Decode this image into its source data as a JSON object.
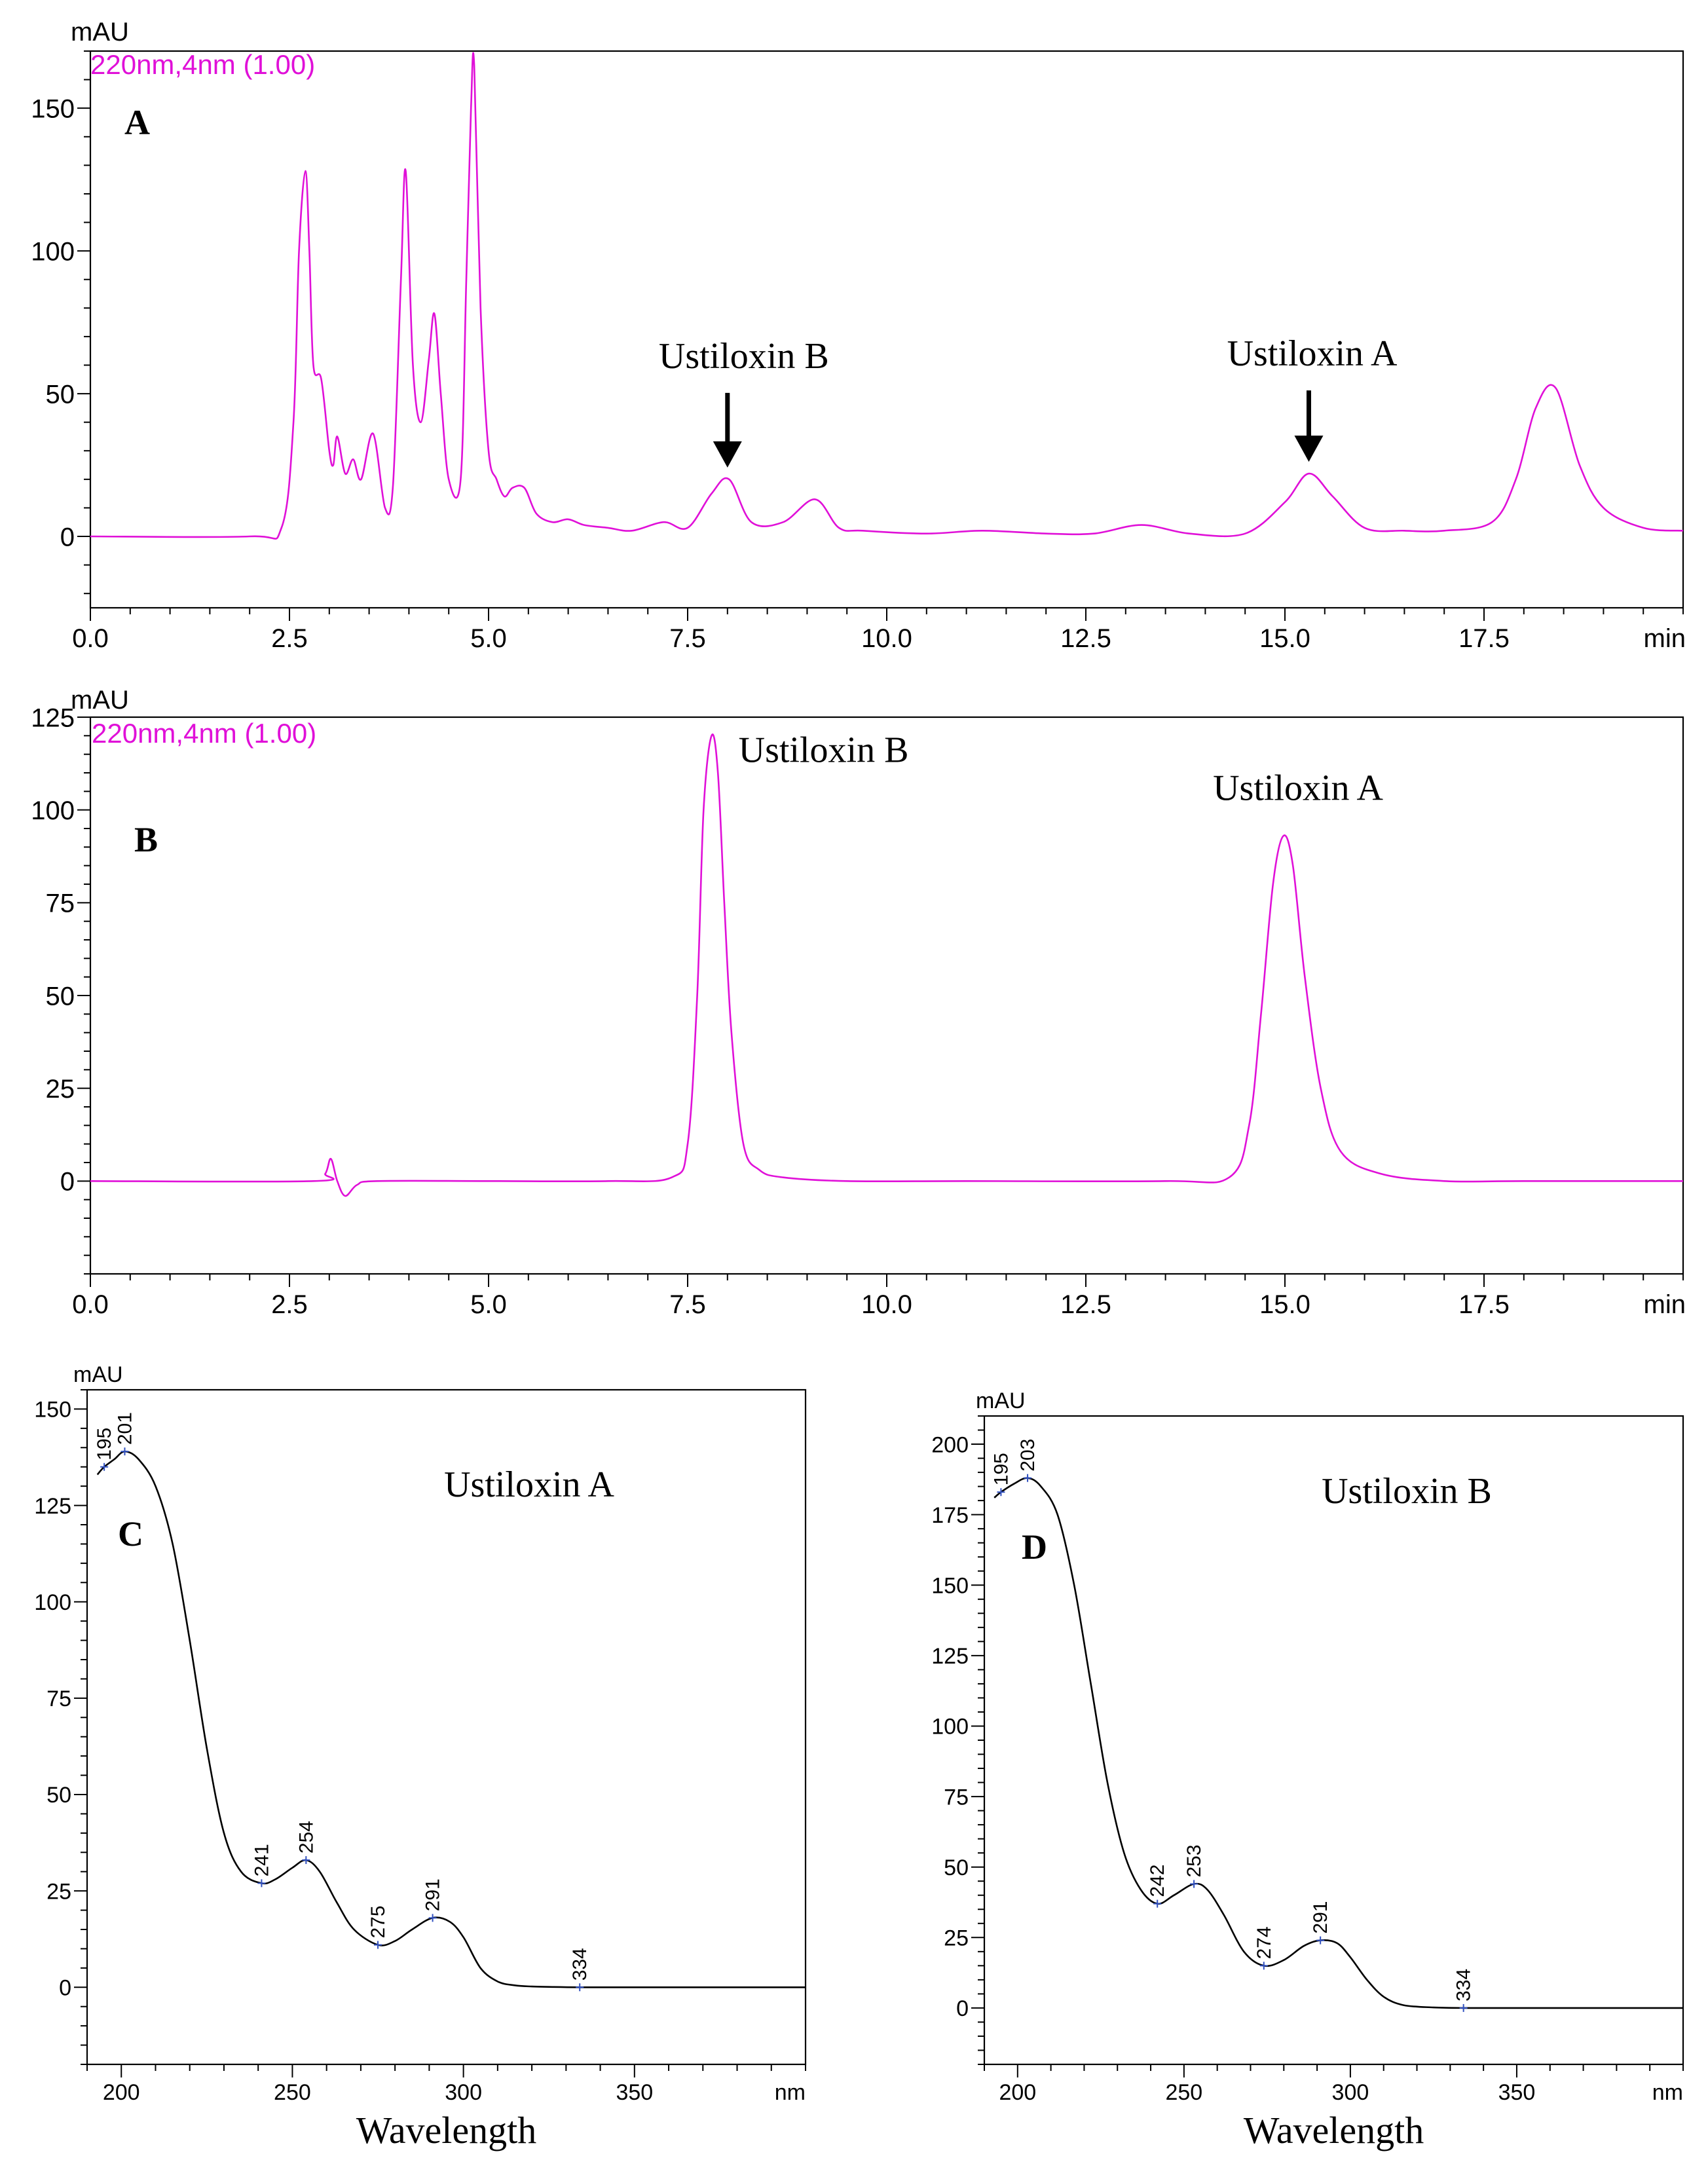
{
  "chart_data": [
    {
      "panel": "A",
      "type": "line",
      "ylabel": "mAU",
      "xlabel": "min",
      "channel": "220nm,4nm (1.00)",
      "xlim": [
        0,
        20
      ],
      "ylim": [
        -25,
        170
      ],
      "xticks": [
        0,
        2.5,
        5,
        7.5,
        10,
        12.5,
        15,
        17.5
      ],
      "xtick_labels": [
        "0.0",
        "2.5",
        "5.0",
        "7.5",
        "10.0",
        "12.5",
        "15.0",
        "17.5"
      ],
      "yticks": [
        0,
        50,
        100,
        150
      ],
      "ytick_labels": [
        "0",
        "50",
        "100",
        "150"
      ],
      "x": [
        0,
        2.0,
        2.4,
        2.55,
        2.62,
        2.7,
        2.75,
        2.8,
        2.9,
        3.0,
        3.05,
        3.1,
        3.2,
        3.3,
        3.4,
        3.55,
        3.7,
        3.8,
        3.9,
        3.96,
        4.05,
        4.15,
        4.25,
        4.32,
        4.4,
        4.5,
        4.65,
        4.72,
        4.78,
        4.82,
        4.9,
        5.0,
        5.1,
        5.2,
        5.3,
        5.45,
        5.6,
        5.8,
        6.0,
        6.2,
        6.5,
        6.8,
        7.2,
        7.5,
        7.8,
        8.02,
        8.3,
        8.7,
        9.1,
        9.4,
        9.7,
        10.5,
        11.2,
        12.0,
        12.6,
        13.2,
        13.8,
        14.5,
        15.0,
        15.3,
        15.6,
        16.0,
        16.5,
        17.0,
        17.6,
        17.9,
        18.15,
        18.4,
        18.7,
        19.0,
        19.5,
        20.0
      ],
      "values": [
        0,
        0,
        3,
        40,
        100,
        128,
        100,
        60,
        55,
        30,
        25,
        35,
        22,
        27,
        20,
        36,
        10,
        18,
        90,
        128,
        60,
        40,
        62,
        78,
        50,
        20,
        20,
        90,
        150,
        165,
        80,
        30,
        20,
        14,
        17,
        17,
        8,
        5,
        6,
        4,
        3,
        2,
        5,
        3,
        15,
        20,
        5,
        5,
        13,
        3,
        2,
        1,
        2,
        1,
        1,
        4,
        1,
        1,
        12,
        22,
        14,
        3,
        2,
        2,
        5,
        20,
        45,
        52,
        25,
        10,
        3,
        2
      ],
      "annotations": [
        {
          "text": "Ustiloxin B",
          "x": 8.0,
          "y": 20
        },
        {
          "text": "Ustiloxin A",
          "x": 15.3,
          "y": 22
        }
      ]
    },
    {
      "panel": "B",
      "type": "line",
      "ylabel": "mAU",
      "xlabel": "min",
      "channel": "220nm,4nm (1.00)",
      "xlim": [
        0,
        20
      ],
      "ylim": [
        -25,
        125
      ],
      "xticks": [
        0,
        2.5,
        5,
        7.5,
        10,
        12.5,
        15,
        17.5
      ],
      "xtick_labels": [
        "0.0",
        "2.5",
        "5.0",
        "7.5",
        "10.0",
        "12.5",
        "15.0",
        "17.5"
      ],
      "yticks": [
        0,
        25,
        50,
        75,
        100,
        125
      ],
      "ytick_labels": [
        "0",
        "25",
        "50",
        "75",
        "100",
        "125"
      ],
      "x": [
        0,
        2.8,
        2.95,
        3.02,
        3.1,
        3.2,
        3.35,
        3.6,
        5.0,
        6.5,
        7.3,
        7.5,
        7.62,
        7.7,
        7.8,
        7.88,
        7.96,
        8.05,
        8.2,
        8.4,
        8.7,
        9.5,
        11.0,
        13.5,
        14.3,
        14.55,
        14.7,
        14.85,
        14.98,
        15.1,
        15.25,
        15.45,
        15.7,
        16.2,
        17.0,
        18.0,
        20.0
      ],
      "values": [
        0,
        0,
        2,
        6,
        0,
        -4,
        -1,
        0,
        0,
        0,
        1,
        10,
        50,
        100,
        120,
        110,
        75,
        40,
        10,
        3,
        1,
        0,
        0,
        0,
        1,
        15,
        45,
        80,
        93,
        85,
        55,
        25,
        8,
        2,
        0,
        0,
        0
      ],
      "annotations": [
        {
          "text": "Ustiloxin B",
          "x": 7.85,
          "y": 120
        },
        {
          "text": "Ustiloxin A",
          "x": 15.0,
          "y": 93
        }
      ]
    },
    {
      "panel": "C",
      "type": "line",
      "title": "Ustiloxin A",
      "ylabel": "mAU",
      "xlabel": "Wavelength",
      "xunit": "nm",
      "xlim": [
        190,
        400
      ],
      "ylim": [
        -20,
        155
      ],
      "xticks": [
        200,
        250,
        300,
        350
      ],
      "xtick_labels": [
        "200",
        "250",
        "300",
        "350"
      ],
      "yticks": [
        0,
        25,
        50,
        75,
        100,
        125,
        150
      ],
      "ytick_labels": [
        "0",
        "25",
        "50",
        "75",
        "100",
        "125",
        "150"
      ],
      "x": [
        193,
        195,
        198,
        201,
        205,
        210,
        215,
        220,
        225,
        230,
        235,
        241,
        245,
        250,
        254,
        258,
        263,
        268,
        275,
        280,
        285,
        291,
        296,
        300,
        305,
        310,
        315,
        320,
        325,
        334,
        350,
        400
      ],
      "values": [
        133,
        135,
        137,
        139,
        137,
        130,
        115,
        90,
        62,
        40,
        30,
        27,
        28,
        31,
        33,
        30,
        22,
        15,
        11,
        12,
        15,
        18,
        17,
        13,
        5,
        1.5,
        0.5,
        0.2,
        0.1,
        0,
        0,
        0
      ],
      "peak_labels": [
        {
          "text": "195",
          "x": 195,
          "y": 135
        },
        {
          "text": "201",
          "x": 201,
          "y": 139
        },
        {
          "text": "241",
          "x": 241,
          "y": 27
        },
        {
          "text": "254",
          "x": 254,
          "y": 33
        },
        {
          "text": "275",
          "x": 275,
          "y": 11
        },
        {
          "text": "291",
          "x": 291,
          "y": 18
        },
        {
          "text": "334",
          "x": 334,
          "y": 0
        }
      ]
    },
    {
      "panel": "D",
      "type": "line",
      "title": "Ustiloxin B",
      "ylabel": "mAU",
      "xlabel": "Wavelength",
      "xunit": "nm",
      "xlim": [
        190,
        400
      ],
      "ylim": [
        -20,
        210
      ],
      "xticks": [
        200,
        250,
        300,
        350
      ],
      "xtick_labels": [
        "200",
        "250",
        "300",
        "350"
      ],
      "yticks": [
        0,
        25,
        50,
        75,
        100,
        125,
        150,
        175,
        200
      ],
      "ytick_labels": [
        "0",
        "25",
        "50",
        "75",
        "100",
        "125",
        "150",
        "175",
        "200"
      ],
      "x": [
        193,
        195,
        199,
        203,
        207,
        212,
        217,
        222,
        227,
        232,
        237,
        242,
        247,
        253,
        257,
        262,
        268,
        274,
        280,
        286,
        291,
        296,
        300,
        305,
        310,
        316,
        325,
        334,
        350,
        400
      ],
      "values": [
        181,
        183,
        186,
        188,
        185,
        175,
        150,
        115,
        80,
        55,
        42,
        37,
        40,
        44,
        42,
        33,
        20,
        15,
        17,
        22,
        24,
        23,
        18,
        10,
        4,
        1,
        0.2,
        0,
        0,
        0
      ],
      "peak_labels": [
        {
          "text": "195",
          "x": 195,
          "y": 183
        },
        {
          "text": "203",
          "x": 203,
          "y": 188
        },
        {
          "text": "242",
          "x": 242,
          "y": 37
        },
        {
          "text": "253",
          "x": 253,
          "y": 44
        },
        {
          "text": "274",
          "x": 274,
          "y": 15
        },
        {
          "text": "291",
          "x": 291,
          "y": 24
        },
        {
          "text": "334",
          "x": 334,
          "y": 0
        }
      ]
    }
  ]
}
